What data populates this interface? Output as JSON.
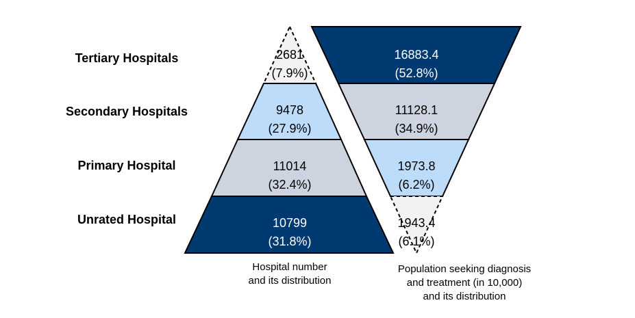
{
  "levels": [
    {
      "label": "Tertiary Hospitals"
    },
    {
      "label": "Secondary Hospitals"
    },
    {
      "label": "Primary Hospital"
    },
    {
      "label": "Unrated Hospital"
    }
  ],
  "hospital_number": {
    "caption": [
      "Hospital number",
      "and its distribution"
    ],
    "tiers": [
      {
        "value": "2681",
        "share": "(7.9%)",
        "fill": "#f2f2f2",
        "text_color": "#000000"
      },
      {
        "value": "9478",
        "share": "(27.9%)",
        "fill": "#bcdcfa",
        "text_color": "#000000"
      },
      {
        "value": "11014",
        "share": "(32.4%)",
        "fill": "#ced4df",
        "text_color": "#000000"
      },
      {
        "value": "10799",
        "share": "(31.8%)",
        "fill": "#003a70",
        "text_color": "#ffffff"
      }
    ]
  },
  "population": {
    "caption": [
      "Population seeking diagnosis",
      "and treatment  (in 10,000)",
      "and its distribution"
    ],
    "tiers": [
      {
        "value": "16883.4",
        "share": "(52.8%)",
        "fill": "#003a70",
        "text_color": "#ffffff"
      },
      {
        "value": "11128.1",
        "share": "(34.9%)",
        "fill": "#ced4df",
        "text_color": "#000000"
      },
      {
        "value": "1973.8",
        "share": "(6.2%)",
        "fill": "#bcdcfa",
        "text_color": "#000000"
      },
      {
        "value": "1943.4",
        "share": "(6.1%)",
        "fill": "#f2f2f2",
        "text_color": "#000000"
      }
    ]
  }
}
